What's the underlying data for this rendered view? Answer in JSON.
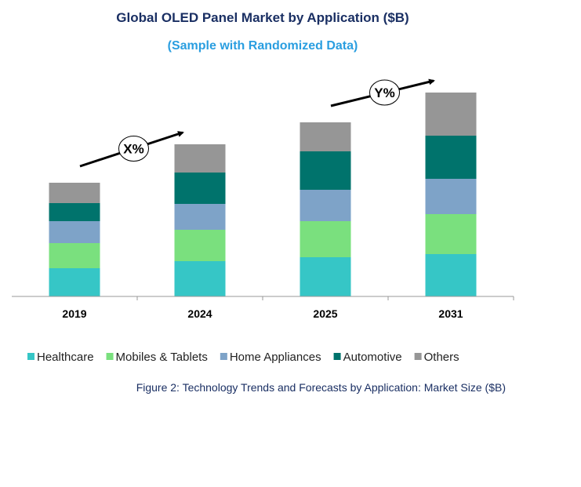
{
  "chart_data": {
    "type": "bar",
    "stacked": true,
    "title": "Global OLED Panel Market by Application ($B)",
    "subtitle": "(Sample with Randomized Data)",
    "caption": "Figure 2: Technology Trends and Forecasts by Application: Market Size ($B)",
    "categories": [
      "2019",
      "2024",
      "2025",
      "2031"
    ],
    "series": [
      {
        "name": "Healthcare",
        "color": "#36C6C6",
        "values": [
          3.6,
          4.5,
          5.0,
          5.4
        ]
      },
      {
        "name": "Mobiles & Tablets",
        "color": "#7AE07E",
        "values": [
          3.2,
          4.0,
          4.6,
          5.1
        ]
      },
      {
        "name": "Home Appliances",
        "color": "#7EA3C8",
        "values": [
          2.8,
          3.3,
          4.0,
          4.5
        ]
      },
      {
        "name": "Automotive",
        "color": "#00736C",
        "values": [
          2.3,
          4.0,
          4.9,
          5.5
        ]
      },
      {
        "name": "Others",
        "color": "#969696",
        "values": [
          2.6,
          3.6,
          3.7,
          5.5
        ]
      }
    ],
    "annotations": [
      {
        "label": "X%",
        "from": "2019",
        "to": "2024"
      },
      {
        "label": "Y%",
        "from": "2025",
        "to": "2031"
      }
    ],
    "ylim": [
      0,
      27
    ],
    "yaxis_visible": false,
    "grid": false,
    "legend_position": "bottom"
  }
}
